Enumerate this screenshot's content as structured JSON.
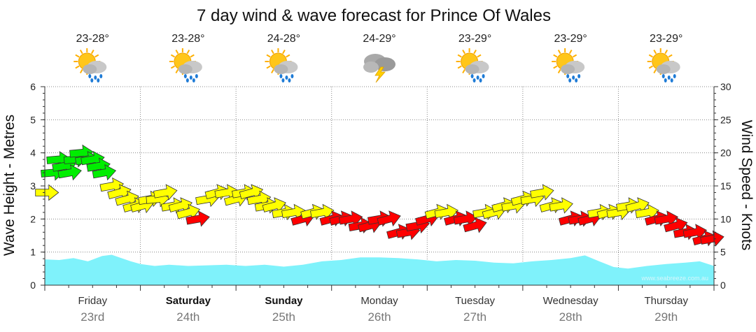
{
  "chart_data": {
    "type": "area",
    "title": "7 day wind & wave forecast for Prince Of Wales",
    "ylabel_left": "Wave Height - Metres",
    "ylabel_right": "Wind Speed - Knots",
    "ylim_left": [
      0,
      6
    ],
    "ylim_right": [
      0,
      30
    ],
    "yticks_left": [
      "0",
      "1",
      "2",
      "3",
      "4",
      "5",
      "6"
    ],
    "yticks_right": [
      "0",
      "5",
      "10",
      "15",
      "20",
      "25",
      "30"
    ],
    "grid": true,
    "days": [
      {
        "name": "Friday",
        "date": "23rd",
        "bold": false,
        "temp": "23-28°",
        "weather": "sun-cloud-rain-icon"
      },
      {
        "name": "Saturday",
        "date": "24th",
        "bold": true,
        "temp": "23-28°",
        "weather": "sun-cloud-rain-icon"
      },
      {
        "name": "Sunday",
        "date": "25th",
        "bold": true,
        "temp": "24-28°",
        "weather": "sun-cloud-rain-icon"
      },
      {
        "name": "Monday",
        "date": "26th",
        "bold": false,
        "temp": "24-29°",
        "weather": "storm-icon"
      },
      {
        "name": "Tuesday",
        "date": "27th",
        "bold": false,
        "temp": "23-29°",
        "weather": "sun-cloud-rain-icon"
      },
      {
        "name": "Wednesday",
        "date": "28th",
        "bold": false,
        "temp": "23-29°",
        "weather": "sun-cloud-rain-icon"
      },
      {
        "name": "Thursday",
        "date": "29th",
        "bold": false,
        "temp": "23-29°",
        "weather": "sun-cloud-rain-icon"
      }
    ],
    "wave_height": {
      "name": "Wave Height (m)",
      "color": "#7ff2fb",
      "x": [
        0,
        0.15,
        0.3,
        0.45,
        0.6,
        0.7,
        0.8,
        0.9,
        1.0,
        1.15,
        1.3,
        1.5,
        1.7,
        1.9,
        2.1,
        2.3,
        2.5,
        2.7,
        2.9,
        3.1,
        3.3,
        3.5,
        3.7,
        3.9,
        4.1,
        4.3,
        4.5,
        4.7,
        4.9,
        5.1,
        5.3,
        5.5,
        5.65,
        5.8,
        5.95,
        6.1,
        6.3,
        6.5,
        6.7,
        6.85,
        7.0
      ],
      "values": [
        0.78,
        0.76,
        0.82,
        0.72,
        0.88,
        0.92,
        0.82,
        0.72,
        0.64,
        0.58,
        0.62,
        0.58,
        0.6,
        0.62,
        0.58,
        0.62,
        0.56,
        0.62,
        0.72,
        0.76,
        0.84,
        0.84,
        0.82,
        0.78,
        0.72,
        0.76,
        0.74,
        0.68,
        0.66,
        0.72,
        0.76,
        0.82,
        0.9,
        0.72,
        0.55,
        0.5,
        0.58,
        0.64,
        0.68,
        0.72,
        0.58
      ]
    },
    "wind": {
      "name": "Wind Speed (knots)",
      "unit": "knots",
      "x": [
        0.02,
        0.08,
        0.14,
        0.2,
        0.26,
        0.32,
        0.38,
        0.44,
        0.5,
        0.56,
        0.62,
        0.7,
        0.78,
        0.86,
        0.94,
        1.02,
        1.1,
        1.18,
        1.26,
        1.34,
        1.42,
        1.5,
        1.6,
        1.7,
        1.8,
        1.9,
        2.0,
        2.08,
        2.16,
        2.24,
        2.32,
        2.4,
        2.5,
        2.6,
        2.7,
        2.8,
        2.9,
        3.0,
        3.1,
        3.2,
        3.3,
        3.4,
        3.5,
        3.6,
        3.7,
        3.8,
        3.9,
        4.0,
        4.1,
        4.2,
        4.3,
        4.4,
        4.5,
        4.6,
        4.7,
        4.8,
        4.9,
        5.0,
        5.1,
        5.2,
        5.3,
        5.4,
        5.5,
        5.6,
        5.7,
        5.8,
        5.9,
        6.0,
        6.1,
        6.2,
        6.3,
        6.4,
        6.5,
        6.6,
        6.7,
        6.8,
        6.9,
        6.98
      ],
      "knots": [
        14,
        17,
        19,
        18,
        17,
        19,
        20,
        19,
        19,
        18,
        17,
        15,
        14,
        13,
        12,
        12,
        13,
        13,
        14,
        12,
        12,
        11,
        10,
        13,
        14,
        14,
        13,
        14,
        14,
        13,
        12,
        12,
        11,
        11,
        10,
        11,
        11,
        10,
        10,
        10,
        9,
        9,
        10,
        10,
        8,
        8,
        9,
        10,
        11,
        11,
        10,
        10,
        9,
        11,
        11,
        12,
        12,
        13,
        13,
        14,
        12,
        12,
        10,
        10,
        10,
        11,
        11,
        11,
        12,
        12,
        11,
        10,
        10,
        9,
        8,
        8,
        7,
        7
      ],
      "direction_deg": [
        135,
        130,
        130,
        125,
        125,
        130,
        130,
        125,
        125,
        125,
        125,
        125,
        120,
        120,
        120,
        120,
        125,
        130,
        125,
        125,
        120,
        120,
        125,
        125,
        120,
        125,
        120,
        125,
        120,
        125,
        125,
        120,
        125,
        125,
        120,
        120,
        125,
        120,
        120,
        125,
        125,
        120,
        125,
        120,
        120,
        125,
        125,
        120,
        120,
        125,
        120,
        125,
        120,
        125,
        120,
        120,
        125,
        120,
        125,
        125,
        120,
        125,
        120,
        125,
        120,
        125,
        120,
        125,
        125,
        120,
        125,
        120,
        125,
        120,
        125,
        125,
        120,
        125
      ]
    },
    "wind_color_scale": [
      {
        "max": 10,
        "color": "#ff0000"
      },
      {
        "max": 15,
        "color": "#ffff00"
      },
      {
        "max": 25,
        "color": "#00ee00"
      }
    ]
  },
  "credit": "www.seabreeze.com.au"
}
